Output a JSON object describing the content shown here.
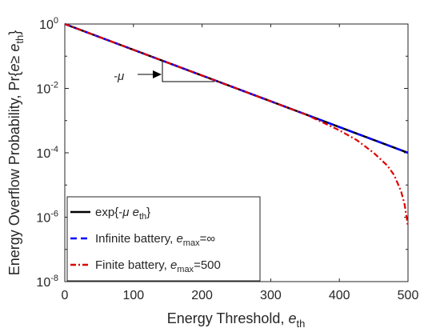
{
  "chart_data": {
    "type": "line",
    "xlabel": "Energy Threshold, e_th",
    "ylabel": "Energy Overflow Probability, Pr{e ≥ e_th}",
    "xlim": [
      0,
      500
    ],
    "ylim": [
      1e-08,
      1
    ],
    "yscale": "log",
    "grid": false,
    "x_ticks": [
      0,
      100,
      200,
      300,
      400,
      500
    ],
    "y_ticks": [
      1,
      0.01,
      0.0001,
      1e-06,
      1e-08
    ],
    "x_tick_labels": [
      "0",
      "100",
      "200",
      "300",
      "400",
      "500"
    ],
    "y_tick_labels": [
      {
        "base": "10",
        "exp": "0"
      },
      {
        "base": "10",
        "exp": "-2"
      },
      {
        "base": "10",
        "exp": "-4"
      },
      {
        "base": "10",
        "exp": "-6"
      },
      {
        "base": "10",
        "exp": "-8"
      }
    ],
    "legend_position": "bottom-left",
    "series": [
      {
        "name": "exp{-μ e_th}",
        "color": "#000000",
        "dash": "solid",
        "x": [
          0,
          100,
          200,
          300,
          400,
          500
        ],
        "y": [
          1,
          0.158,
          0.0251,
          0.00398,
          0.000631,
          0.0001
        ]
      },
      {
        "name": "Infinite battery, e_max=∞",
        "color": "#0000ff",
        "dash": "dashed",
        "x": [
          0,
          100,
          200,
          300,
          400,
          500
        ],
        "y": [
          1,
          0.158,
          0.0251,
          0.00398,
          0.000631,
          0.0001
        ]
      },
      {
        "name": "Finite battery, e_max=500",
        "color": "#e00000",
        "dash": "dashdot",
        "x": [
          0,
          100,
          200,
          300,
          350,
          400,
          425,
          450,
          470,
          480,
          490,
          495,
          498,
          500
        ],
        "y": [
          1,
          0.158,
          0.0251,
          0.00398,
          0.00158,
          0.0005,
          0.000251,
          0.0001,
          3.98e-05,
          2e-05,
          6.3e-06,
          2.51e-06,
          1e-06,
          5e-07
        ]
      }
    ],
    "legend_entries": [
      {
        "pre": "exp{-",
        "greek": "μ",
        "mid": " e",
        "sub": "th",
        "post": "}"
      },
      {
        "pre": "Infinite battery, ",
        "italic": "e",
        "sub": "max",
        "post": "=∞"
      },
      {
        "pre": "Finite battery, ",
        "italic": "e",
        "sub": "max",
        "post": "=500"
      }
    ],
    "annotation": {
      "text": "-μ"
    },
    "xlabel_parts": {
      "main": "Energy Threshold, ",
      "italic": "e",
      "sub": "th"
    },
    "ylabel_parts": {
      "main": "Energy Overflow Probability, Pr{",
      "italic": "e",
      "op": "≥ ",
      "italic2": "e",
      "sub": "th",
      "end": "}"
    }
  }
}
